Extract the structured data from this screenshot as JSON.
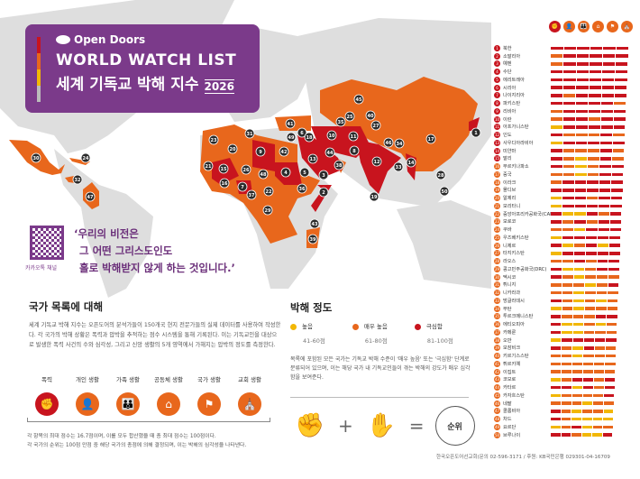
{
  "brand": "Open Doors",
  "title_en": "WORLD WATCH LIST",
  "title_ko": "세계 기독교 박해 지수",
  "year": "2026",
  "colors": {
    "extreme": "#c8141e",
    "very_high": "#e8671c",
    "high": "#f2b705",
    "brand_purple": "#7b3a8a",
    "land": "#dedede"
  },
  "qr_label": "카카오톡 채널",
  "quote": [
    "‘우리의 비전은",
    "그 어떤 그리스도인도",
    "홀로 박해받지 않게 하는 것입니다.’"
  ],
  "about": {
    "heading": "국가 목록에 대해",
    "body": "세계 기독교 박해 지수는 오픈도어의 분석가들이 150개국 현지 전문가들의 실제 데이터를 사용하여 작성한다. 각 국가의 박해 상황은 폭력과 압박을 추적하는 점수 시스템을 통해 기록된다. 이는 기독교인을 대상으로 발생한 폭력 사건의 수와 심각성, 그리고 신앙 생활의 5개 영역에서 가해지는 압박의 정도를 측정한다.",
    "categories": [
      {
        "label": "폭력",
        "icon": "violence-icon",
        "glyph": "✊"
      },
      {
        "label": "개인 생활",
        "icon": "private-life-icon",
        "glyph": "👤"
      },
      {
        "label": "가족 생활",
        "icon": "family-life-icon",
        "glyph": "👪"
      },
      {
        "label": "공동체 생활",
        "icon": "community-life-icon",
        "glyph": "⌂"
      },
      {
        "label": "국가 생활",
        "icon": "national-life-icon",
        "glyph": "⚑"
      },
      {
        "label": "교회 생활",
        "icon": "church-life-icon",
        "glyph": "⛪"
      }
    ],
    "note": [
      "각 항목의 최대 점수는 16.7점이며, 이를 모두 합산했을 때 총 최대 점수는 100점이다.",
      "각 국가의 순위는 100점 만점 중 해당 국가의 총점에 의해 결정되며, 이는 박해의 심각성을 나타낸다."
    ]
  },
  "severity": {
    "heading": "박해 정도",
    "levels": [
      {
        "label": "높음",
        "range": "41-60점",
        "key": "high"
      },
      {
        "label": "매우 높음",
        "range": "61-80점",
        "key": "very_high"
      },
      {
        "label": "극심함",
        "range": "81-100점",
        "key": "extreme"
      }
    ],
    "body": "목록에 포함된 모든 국가는 기독교 박해 수준이 '매우 높음' 또는 '극심함' 단계로 분류되어 있으며, 이는 해당 국가 내 기독교인들이 겪는 박해의 강도가 매우 심각함을 보여준다.",
    "formula_result": "순위"
  },
  "footer": "한국오픈도어선교회(문의 02-596-3171 / 후원: KB국민은행 029301-04-16709",
  "countries": [
    {
      "rank": 1,
      "name": "북한",
      "levels": "eeeeee"
    },
    {
      "rank": 2,
      "name": "소말리아",
      "levels": "veeeee"
    },
    {
      "rank": 3,
      "name": "예멘",
      "levels": "veeeee"
    },
    {
      "rank": 4,
      "name": "수단",
      "levels": "eeeeee"
    },
    {
      "rank": 5,
      "name": "에리트레아",
      "levels": "eeeeee"
    },
    {
      "rank": 6,
      "name": "시리아",
      "levels": "eeeeee"
    },
    {
      "rank": 7,
      "name": "나이지리아",
      "levels": "eveeee"
    },
    {
      "rank": 8,
      "name": "파키스탄",
      "levels": "eeeeev"
    },
    {
      "rank": 9,
      "name": "리비아",
      "levels": "veeeee"
    },
    {
      "rank": 10,
      "name": "이란",
      "levels": "veevee"
    },
    {
      "rank": 11,
      "name": "아프가니스탄",
      "levels": "heeeee"
    },
    {
      "rank": 12,
      "name": "인도",
      "levels": "evvvev"
    },
    {
      "rank": 13,
      "name": "사우디아라비아",
      "levels": "heeeee"
    },
    {
      "rank": 14,
      "name": "미얀마",
      "levels": "evvvev"
    },
    {
      "rank": 15,
      "name": "말리",
      "levels": "evhvev"
    },
    {
      "rank": 16,
      "name": "부르키나파소",
      "levels": "evhvee"
    },
    {
      "rank": 17,
      "name": "중국",
      "levels": "vvhvee"
    },
    {
      "rank": 18,
      "name": "이라크",
      "levels": "veeeee"
    },
    {
      "rank": 19,
      "name": "몰디브",
      "levels": "eeeeee"
    },
    {
      "rank": 20,
      "name": "알제리",
      "levels": "heevee"
    },
    {
      "rank": 21,
      "name": "모리타니",
      "levels": "heeeee"
    },
    {
      "rank": 22,
      "name": "중앙아프리카공화국(CAR)",
      "levels": "ehheve"
    },
    {
      "rank": 23,
      "name": "모로코",
      "levels": "evevee"
    },
    {
      "rank": 24,
      "name": "쿠바",
      "levels": "vvheee"
    },
    {
      "rank": 25,
      "name": "우즈베키스탄",
      "levels": "heeeee"
    },
    {
      "rank": 26,
      "name": "니제르",
      "levels": "ehvehe"
    },
    {
      "rank": 27,
      "name": "타지키스탄",
      "levels": "heeeee"
    },
    {
      "rank": 28,
      "name": "라오스",
      "levels": "vvevee"
    },
    {
      "rank": 29,
      "name": "콩고민주공화국(DRC)",
      "levels": "ehhvee"
    },
    {
      "rank": 30,
      "name": "멕시코",
      "levels": "evhvvv"
    },
    {
      "rank": 31,
      "name": "튀니지",
      "levels": "vvvhve"
    },
    {
      "rank": 32,
      "name": "니카라과",
      "levels": "vvhvvv"
    },
    {
      "rank": 33,
      "name": "방글라데시",
      "levels": "evhvhv"
    },
    {
      "rank": 34,
      "name": "부탄",
      "levels": "hvhvvv"
    },
    {
      "rank": 35,
      "name": "투르크메니스탄",
      "levels": "evvvee"
    },
    {
      "rank": 36,
      "name": "에티오피아",
      "levels": "ehhvhv"
    },
    {
      "rank": 37,
      "name": "카메룬",
      "levels": "ehhvvv"
    },
    {
      "rank": 38,
      "name": "오만",
      "levels": "heeeee"
    },
    {
      "rank": 39,
      "name": "모잠비크",
      "levels": "evhevv"
    },
    {
      "rank": 40,
      "name": "키르기스스탄",
      "levels": "vvhvvv"
    },
    {
      "rank": 41,
      "name": "튀르키예",
      "levels": "vvvvvv"
    },
    {
      "rank": 42,
      "name": "이집트",
      "levels": "vvvvvv"
    },
    {
      "rank": 43,
      "name": "코모로",
      "levels": "hveeve"
    },
    {
      "rank": 44,
      "name": "카타르",
      "levels": "eeheve"
    },
    {
      "rank": 45,
      "name": "카자흐스탄",
      "levels": "hvvvve"
    },
    {
      "rank": 46,
      "name": "네팔",
      "levels": "vvvhvv"
    },
    {
      "rank": 47,
      "name": "콜롬비아",
      "levels": "evhvvh"
    },
    {
      "rank": 48,
      "name": "차드",
      "levels": "evhhhh"
    },
    {
      "rank": 49,
      "name": "요르단",
      "levels": "hvehvv"
    },
    {
      "rank": 50,
      "name": "브루나이",
      "levels": "eevhhe"
    }
  ]
}
